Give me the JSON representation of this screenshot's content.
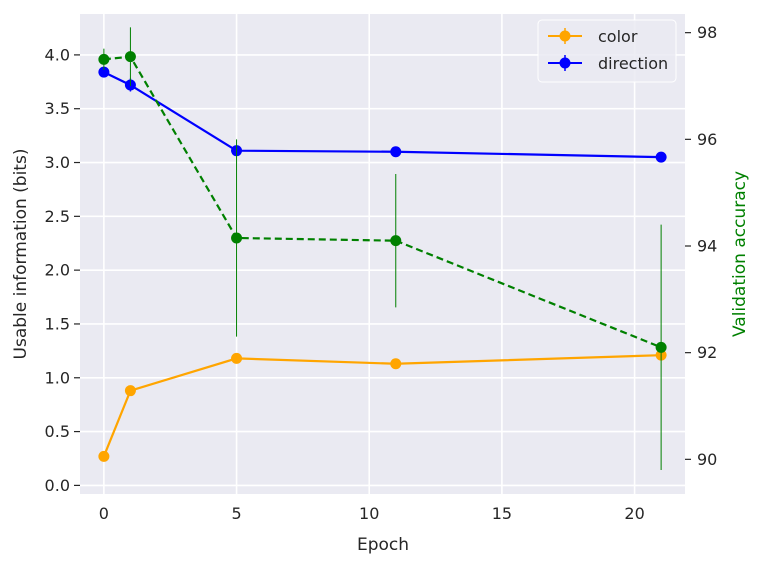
{
  "chart_data": {
    "type": "line",
    "xlabel": "Epoch",
    "ylabel": "Usable information (bits)",
    "y2label": "Validation accuracy",
    "xlim": [
      -0.9,
      21.9
    ],
    "ylim": [
      -0.08,
      4.38
    ],
    "y2lim": [
      89.35,
      98.35
    ],
    "xticks": [
      "0",
      "5",
      "10",
      "15",
      "20"
    ],
    "xtick_values": [
      0,
      5,
      10,
      15,
      20
    ],
    "yticks": [
      "0.0",
      "0.5",
      "1.0",
      "1.5",
      "2.0",
      "2.5",
      "3.0",
      "3.5",
      "4.0"
    ],
    "ytick_values": [
      0,
      0.5,
      1.0,
      1.5,
      2.0,
      2.5,
      3.0,
      3.5,
      4.0
    ],
    "y2ticks": [
      "90",
      "92",
      "94",
      "96",
      "98"
    ],
    "y2tick_values": [
      90,
      92,
      94,
      96,
      98
    ],
    "grid": true,
    "legend_position": "top-right",
    "series": [
      {
        "name": "color",
        "axis": "left",
        "color": "#FFA500",
        "style": "solid",
        "x": [
          0,
          1,
          5,
          11,
          21
        ],
        "y": [
          0.27,
          0.88,
          1.18,
          1.13,
          1.21
        ],
        "err": [
          0.03,
          0.03,
          0.04,
          0.04,
          0.04
        ]
      },
      {
        "name": "direction",
        "axis": "left",
        "color": "#0000FF",
        "style": "solid",
        "x": [
          0,
          1,
          5,
          11,
          21
        ],
        "y": [
          3.84,
          3.72,
          3.11,
          3.1,
          3.05
        ],
        "err": [
          0.05,
          0.06,
          0.03,
          0.03,
          0.03
        ]
      },
      {
        "name": "",
        "axis": "right",
        "color": "#008000",
        "style": "dashed",
        "x": [
          0,
          1,
          5,
          11,
          21
        ],
        "y": [
          97.5,
          97.55,
          94.15,
          94.1,
          92.1
        ],
        "err": [
          0.2,
          0.55,
          1.85,
          1.25,
          2.3
        ]
      }
    ],
    "colors": {
      "background": "#EAEAF2",
      "grid": "#FFFFFF",
      "y2label": "#008000",
      "text": "#262626"
    }
  }
}
